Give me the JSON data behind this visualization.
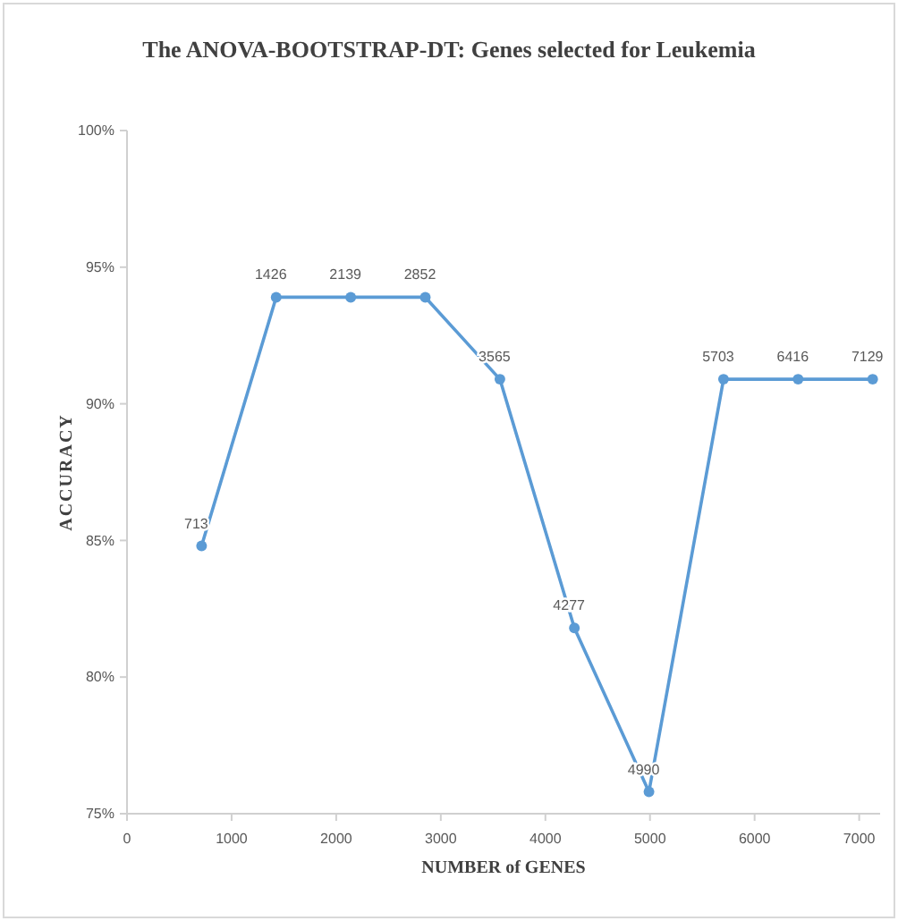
{
  "chart_data": {
    "type": "line",
    "title": "The ANOVA-BOOTSTRAP-DT:  Genes selected for Leukemia",
    "xlabel": "NUMBER of GENES",
    "ylabel": "ACCURACY",
    "x": [
      713,
      1426,
      2139,
      2852,
      3565,
      4277,
      4990,
      5703,
      6416,
      7129
    ],
    "series": [
      {
        "color": "#5b9bd5",
        "values": [
          84.8,
          93.9,
          93.9,
          93.9,
          90.9,
          81.8,
          75.8,
          90.9,
          90.9,
          90.9
        ]
      }
    ],
    "annotations": [
      {
        "text": "713",
        "x": 713,
        "y": 84.8
      },
      {
        "text": "1426",
        "x": 1426,
        "y": 93.9
      },
      {
        "text": "2139",
        "x": 2139,
        "y": 93.9
      },
      {
        "text": "2852",
        "x": 2852,
        "y": 93.9
      },
      {
        "text": "3565",
        "x": 3565,
        "y": 90.9
      },
      {
        "text": "4277",
        "x": 4277,
        "y": 81.8
      },
      {
        "text": "4990",
        "x": 4990,
        "y": 75.8
      },
      {
        "text": "5703",
        "x": 5703,
        "y": 90.9
      },
      {
        "text": "6416",
        "x": 6416,
        "y": 90.9
      },
      {
        "text": "7129",
        "x": 7129,
        "y": 90.9
      }
    ],
    "xlim": [
      0,
      7200
    ],
    "xticks": [
      0,
      1000,
      2000,
      3000,
      4000,
      5000,
      6000,
      7000
    ],
    "ylim": [
      75,
      100
    ],
    "yticks": [
      {
        "value": 75,
        "label": "75%"
      },
      {
        "value": 80,
        "label": "80%"
      },
      {
        "value": 85,
        "label": "85%"
      },
      {
        "value": 90,
        "label": "90%"
      },
      {
        "value": 95,
        "label": "95%"
      },
      {
        "value": 100,
        "label": "100%"
      }
    ],
    "grid": false,
    "marker": "circle",
    "line_style": "solid"
  }
}
